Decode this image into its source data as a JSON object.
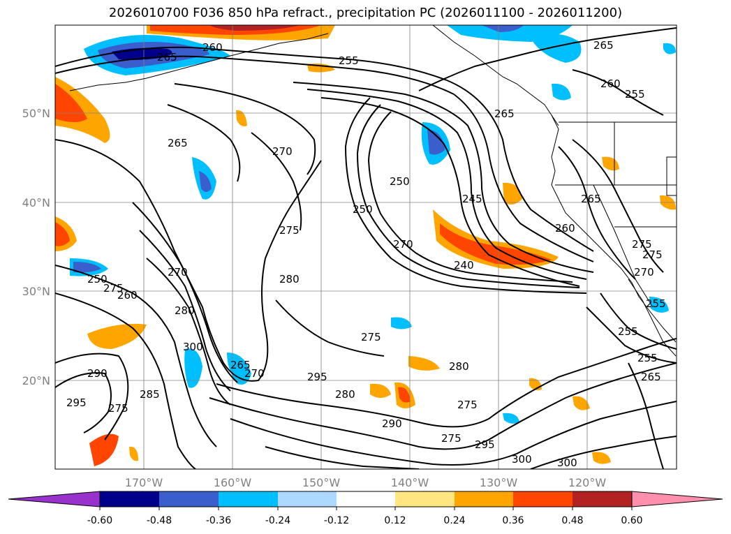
{
  "title": "2026010700 F036 850 hPa refract., precipitation PC (2026011100 - 2026011200)",
  "map": {
    "lat_labels": [
      "50°N",
      "40°N",
      "30°N",
      "20°N"
    ],
    "lon_labels": [
      "170°W",
      "160°W",
      "150°W",
      "140°W",
      "130°W",
      "120°W"
    ],
    "contour_labels": [
      "265",
      "260",
      "255",
      "265",
      "260",
      "255",
      "265",
      "265",
      "270",
      "250",
      "250",
      "245",
      "265",
      "260",
      "275",
      "270",
      "240",
      "275",
      "280",
      "270",
      "275",
      "280",
      "255",
      "260",
      "280",
      "250",
      "255",
      "300",
      "265",
      "270",
      "275",
      "280",
      "295",
      "290",
      "275",
      "285",
      "295",
      "275",
      "290",
      "275",
      "295",
      "300",
      "300",
      "255",
      "265",
      "270",
      "275"
    ],
    "colors": {
      "contour": "#000000",
      "grid": "#808080",
      "coast": "#000000"
    }
  },
  "colorbar": {
    "tick_labels": [
      "-0.60",
      "-0.48",
      "-0.36",
      "-0.24",
      "-0.12",
      "0.12",
      "0.24",
      "0.36",
      "0.48",
      "0.60"
    ],
    "colors": [
      "#9932cc",
      "#00008b",
      "#3a5fcd",
      "#00bfff",
      "#add8ff",
      "#ffffff",
      "#ffe680",
      "#ffa500",
      "#ff4500",
      "#b22222",
      "#ff8fad"
    ]
  }
}
